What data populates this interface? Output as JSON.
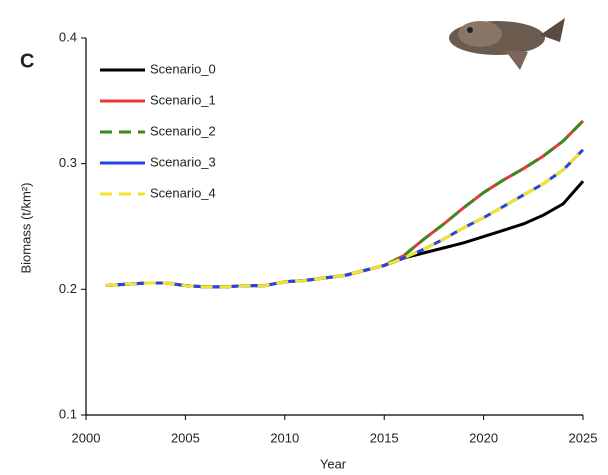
{
  "chart_data": {
    "type": "line",
    "title": "C",
    "x_label": "Year",
    "y_label": "Biomass (t/km²)",
    "x": [
      2001,
      2002,
      2003,
      2004,
      2005,
      2006,
      2007,
      2008,
      2009,
      2010,
      2011,
      2012,
      2013,
      2014,
      2015,
      2016,
      2017,
      2018,
      2019,
      2020,
      2021,
      2022,
      2023,
      2024,
      2025
    ],
    "series": [
      {
        "name": "Scenario_0",
        "color": "#000000",
        "dashed": false,
        "values": [
          0.203,
          0.204,
          0.205,
          0.205,
          0.203,
          0.202,
          0.202,
          0.203,
          0.203,
          0.206,
          0.207,
          0.209,
          0.211,
          0.215,
          0.219,
          0.225,
          0.229,
          0.233,
          0.237,
          0.242,
          0.247,
          0.252,
          0.259,
          0.268,
          0.286
        ]
      },
      {
        "name": "Scenario_1",
        "color": "#e8373a",
        "dashed": false,
        "values": [
          0.203,
          0.204,
          0.205,
          0.205,
          0.203,
          0.202,
          0.202,
          0.203,
          0.203,
          0.206,
          0.207,
          0.209,
          0.211,
          0.215,
          0.219,
          0.227,
          0.24,
          0.252,
          0.265,
          0.277,
          0.287,
          0.296,
          0.306,
          0.318,
          0.334
        ]
      },
      {
        "name": "Scenario_2",
        "color": "#3c8a1e",
        "dashed": true,
        "values": [
          0.203,
          0.204,
          0.205,
          0.205,
          0.203,
          0.202,
          0.202,
          0.203,
          0.203,
          0.206,
          0.207,
          0.209,
          0.211,
          0.215,
          0.219,
          0.227,
          0.24,
          0.252,
          0.265,
          0.277,
          0.287,
          0.296,
          0.306,
          0.318,
          0.334
        ]
      },
      {
        "name": "Scenario_3",
        "color": "#2743e6",
        "dashed": false,
        "values": [
          0.203,
          0.204,
          0.205,
          0.205,
          0.203,
          0.202,
          0.202,
          0.203,
          0.203,
          0.206,
          0.207,
          0.209,
          0.211,
          0.215,
          0.219,
          0.225,
          0.232,
          0.24,
          0.249,
          0.257,
          0.266,
          0.275,
          0.284,
          0.295,
          0.311
        ]
      },
      {
        "name": "Scenario_4",
        "color": "#f2e528",
        "dashed": true,
        "values": [
          0.203,
          0.204,
          0.205,
          0.205,
          0.203,
          0.202,
          0.202,
          0.203,
          0.203,
          0.206,
          0.207,
          0.209,
          0.211,
          0.215,
          0.219,
          0.225,
          0.232,
          0.24,
          0.249,
          0.257,
          0.266,
          0.275,
          0.284,
          0.295,
          0.311
        ]
      }
    ],
    "xlim": [
      2000,
      2025
    ],
    "xticks": [
      2000,
      2005,
      2010,
      2015,
      2020,
      2025
    ],
    "ylim": [
      0.1,
      0.4
    ],
    "yticks": [
      0.1,
      0.2,
      0.3,
      0.4
    ],
    "grid": false
  }
}
